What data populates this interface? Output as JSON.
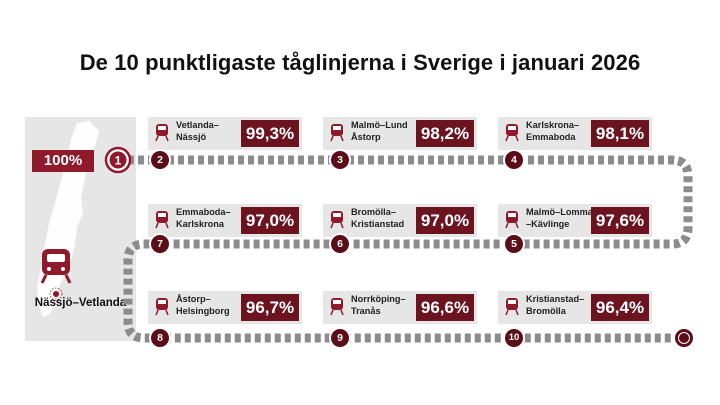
{
  "title": "De 10 punktligaste tåglinjerna i Sverige i januari 2026",
  "top_badge": "100%",
  "map_label": "Nässjö–Vetlanda",
  "start_number": "1",
  "colors": {
    "accent": "#8e1a2b",
    "dark": "#5c0e18",
    "track": "#8c8c8c",
    "panel": "#e6e6e6"
  },
  "icons": [
    "train-icon",
    "location-dot-icon",
    "sweden-map-icon"
  ],
  "routes": [
    {
      "rank": "2",
      "line1": "Vetlanda–",
      "line2": "Nässjö",
      "value": "99,3%"
    },
    {
      "rank": "3",
      "line1": "Malmö–Lund",
      "line2": "Åstorp",
      "value": "98,2%"
    },
    {
      "rank": "4",
      "line1": "Karlskrona–",
      "line2": "Emmaboda",
      "value": "98,1%"
    },
    {
      "rank": "5",
      "line1": "Malmö–Lomma",
      "line2": "–Kävlinge",
      "value": "97,6%"
    },
    {
      "rank": "6",
      "line1": "Bromölla–",
      "line2": "Kristianstad",
      "value": "97,0%"
    },
    {
      "rank": "7",
      "line1": "Emmaboda–",
      "line2": "Karlskrona",
      "value": "97,0%"
    },
    {
      "rank": "8",
      "line1": "Åstorp–",
      "line2": "Helsingborg",
      "value": "96,7%"
    },
    {
      "rank": "9",
      "line1": "Norrköping–",
      "line2": "Tranås",
      "value": "96,6%"
    },
    {
      "rank": "10",
      "line1": "Kristianstad–",
      "line2": "Bromölla",
      "value": "96,4%"
    }
  ]
}
